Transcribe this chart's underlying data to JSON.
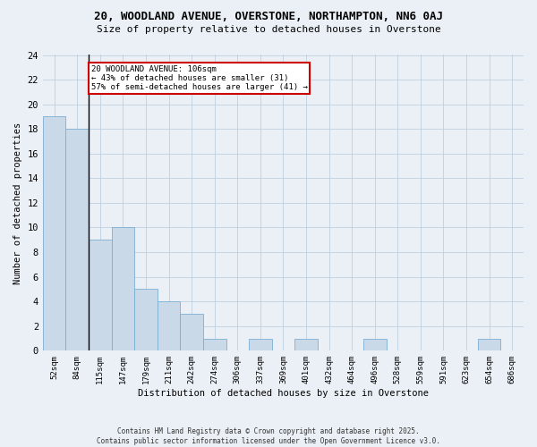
{
  "title_line1": "20, WOODLAND AVENUE, OVERSTONE, NORTHAMPTON, NN6 0AJ",
  "title_line2": "Size of property relative to detached houses in Overstone",
  "xlabel": "Distribution of detached houses by size in Overstone",
  "ylabel": "Number of detached properties",
  "categories": [
    "52sqm",
    "84sqm",
    "115sqm",
    "147sqm",
    "179sqm",
    "211sqm",
    "242sqm",
    "274sqm",
    "306sqm",
    "337sqm",
    "369sqm",
    "401sqm",
    "432sqm",
    "464sqm",
    "496sqm",
    "528sqm",
    "559sqm",
    "591sqm",
    "623sqm",
    "654sqm",
    "686sqm"
  ],
  "values": [
    19,
    18,
    9,
    10,
    5,
    4,
    3,
    1,
    0,
    1,
    0,
    1,
    0,
    0,
    1,
    0,
    0,
    0,
    0,
    1,
    0
  ],
  "bar_color": "#c9d9e8",
  "bar_edge_color": "#7bafd4",
  "grid_color": "#c0cfe0",
  "background_color": "#eaf0f6",
  "property_line_x": 1.5,
  "annotation_text": "20 WOODLAND AVENUE: 106sqm\n← 43% of detached houses are smaller (31)\n57% of semi-detached houses are larger (41) →",
  "annotation_box_color": "white",
  "annotation_box_edge_color": "#cc0000",
  "ylim": [
    0,
    24
  ],
  "yticks": [
    0,
    2,
    4,
    6,
    8,
    10,
    12,
    14,
    16,
    18,
    20,
    22,
    24
  ],
  "footnote": "Contains HM Land Registry data © Crown copyright and database right 2025.\nContains public sector information licensed under the Open Government Licence v3.0."
}
